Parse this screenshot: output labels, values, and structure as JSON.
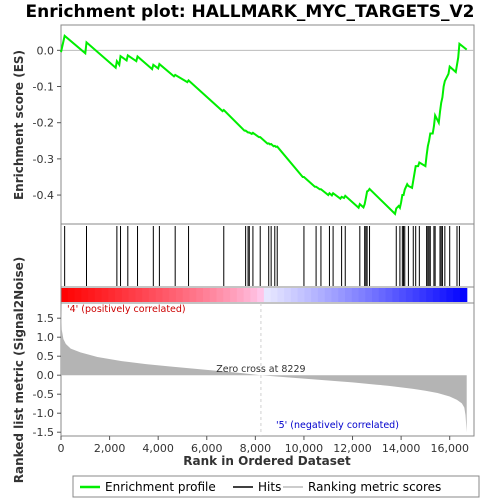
{
  "chart_data": {
    "type": "line",
    "title": "Enrichment plot: HALLMARK_MYC_TARGETS_V2",
    "colors": {
      "profile": "#00ee00",
      "hits": "#000000",
      "metric_fill": "#b4b4b4",
      "positive": "#ff0000",
      "negative": "#0000ff",
      "zero_line": "#d0d0d0"
    },
    "panels": {
      "es": {
        "ylabel": "Enrichment score (ES)",
        "ylim": [
          -0.48,
          0.07
        ],
        "yticks": [
          0.0,
          -0.1,
          -0.2,
          -0.3,
          -0.4
        ],
        "ytick_labels": [
          "0.0",
          "-0.1",
          "-0.2",
          "-0.3",
          "-0.4"
        ],
        "grid": false
      },
      "metric": {
        "ylabel": "Ranked list metric (Signal2Noise)",
        "ylim": [
          -1.6,
          1.9
        ],
        "yticks": [
          1.5,
          1.0,
          0.5,
          0.0,
          -0.5,
          -1.0,
          -1.5
        ],
        "ytick_labels": [
          "1.5",
          "1.0",
          "0.5",
          "0.0",
          "-0.5",
          "-1.0",
          "-1.5"
        ],
        "zero_cross_label": "Zero cross at 8229",
        "zero_cross_x": 8229,
        "pos_label": "'4' (positively correlated)",
        "neg_label": "'5' (negatively correlated)"
      }
    },
    "xlabel": "Rank in Ordered Dataset",
    "xlim": [
      0,
      17000
    ],
    "xticks": [
      0,
      2000,
      4000,
      6000,
      8000,
      10000,
      12000,
      14000,
      16000
    ],
    "xtick_labels": [
      "0",
      "2,000",
      "4,000",
      "6,000",
      "8,000",
      "10,000",
      "12,000",
      "14,000",
      "16,000"
    ],
    "n_genes": 16700,
    "hits": [
      150,
      1050,
      2300,
      2450,
      2750,
      3150,
      3800,
      4050,
      4700,
      5250,
      6700,
      7600,
      7700,
      7750,
      7900,
      8200,
      8550,
      8650,
      8800,
      8900,
      10000,
      10500,
      10700,
      11050,
      11200,
      11550,
      11700,
      12300,
      12500,
      12550,
      12600,
      12700,
      13800,
      13950,
      14050,
      14100,
      14150,
      14300,
      14500,
      14600,
      14750,
      15050,
      15100,
      15150,
      15200,
      15350,
      15400,
      15600,
      15650,
      15700,
      15800,
      16000,
      16300,
      16400
    ],
    "series": [
      {
        "name": "Enrichment profile",
        "x": [
          0,
          150,
          1000,
          1050,
          2250,
          2300,
          2400,
          2450,
          2700,
          2750,
          3100,
          3150,
          3750,
          3800,
          4000,
          4050,
          4650,
          4700,
          5200,
          5250,
          6650,
          6700,
          7550,
          7600,
          7700,
          7750,
          7850,
          7900,
          8150,
          8200,
          8500,
          8550,
          8600,
          8650,
          8750,
          8800,
          8850,
          8900,
          9950,
          10000,
          10450,
          10500,
          10650,
          10700,
          11000,
          11050,
          11150,
          11200,
          11500,
          11550,
          11650,
          11700,
          12250,
          12300,
          12450,
          12500,
          12550,
          12600,
          12650,
          12700,
          13750,
          13800,
          13900,
          13950,
          14000,
          14050,
          14100,
          14150,
          14250,
          14300,
          14450,
          14500,
          14550,
          14600,
          14700,
          14750,
          15000,
          15050,
          15100,
          15150,
          15200,
          15300,
          15350,
          15400,
          15550,
          15600,
          15650,
          15700,
          15750,
          15800,
          15950,
          16000,
          16250,
          16300,
          16350,
          16400,
          16700
        ],
        "values": [
          -0.005,
          0.04,
          -0.008,
          0.022,
          -0.048,
          -0.03,
          -0.04,
          -0.016,
          -0.028,
          -0.014,
          -0.03,
          -0.017,
          -0.052,
          -0.04,
          -0.05,
          -0.038,
          -0.072,
          -0.068,
          -0.088,
          -0.083,
          -0.168,
          -0.165,
          -0.222,
          -0.222,
          -0.227,
          -0.227,
          -0.231,
          -0.228,
          -0.24,
          -0.24,
          -0.258,
          -0.257,
          -0.26,
          -0.259,
          -0.265,
          -0.264,
          -0.267,
          -0.266,
          -0.35,
          -0.35,
          -0.377,
          -0.377,
          -0.384,
          -0.384,
          -0.4,
          -0.395,
          -0.401,
          -0.395,
          -0.41,
          -0.405,
          -0.408,
          -0.402,
          -0.435,
          -0.425,
          -0.434,
          -0.425,
          -0.408,
          -0.39,
          -0.388,
          -0.383,
          -0.452,
          -0.437,
          -0.43,
          -0.435,
          -0.42,
          -0.4,
          -0.4,
          -0.385,
          -0.37,
          -0.375,
          -0.38,
          -0.36,
          -0.34,
          -0.32,
          -0.32,
          -0.31,
          -0.32,
          -0.29,
          -0.265,
          -0.25,
          -0.23,
          -0.23,
          -0.21,
          -0.18,
          -0.2,
          -0.17,
          -0.145,
          -0.13,
          -0.1,
          -0.085,
          -0.065,
          -0.045,
          -0.06,
          -0.04,
          -0.02,
          0.018,
          0.002
        ]
      }
    ],
    "legend": {
      "placement": "bottom",
      "items": [
        "Enrichment profile",
        "Hits",
        "Ranking metric scores"
      ]
    },
    "metric_curve": {
      "x": [
        0,
        30,
        100,
        200,
        400,
        800,
        1500,
        2500,
        3500,
        4500,
        5500,
        6500,
        7500,
        8229,
        9000,
        10000,
        11000,
        12000,
        13000,
        13500,
        14000,
        14500,
        15000,
        15500,
        16000,
        16300,
        16500,
        16600,
        16650,
        16700
      ],
      "values": [
        1.85,
        1.2,
        0.95,
        0.82,
        0.7,
        0.6,
        0.48,
        0.37,
        0.29,
        0.23,
        0.17,
        0.11,
        0.05,
        0.0,
        -0.04,
        -0.09,
        -0.14,
        -0.19,
        -0.25,
        -0.28,
        -0.32,
        -0.36,
        -0.41,
        -0.47,
        -0.56,
        -0.65,
        -0.74,
        -0.85,
        -1.05,
        -1.5
      ]
    }
  }
}
